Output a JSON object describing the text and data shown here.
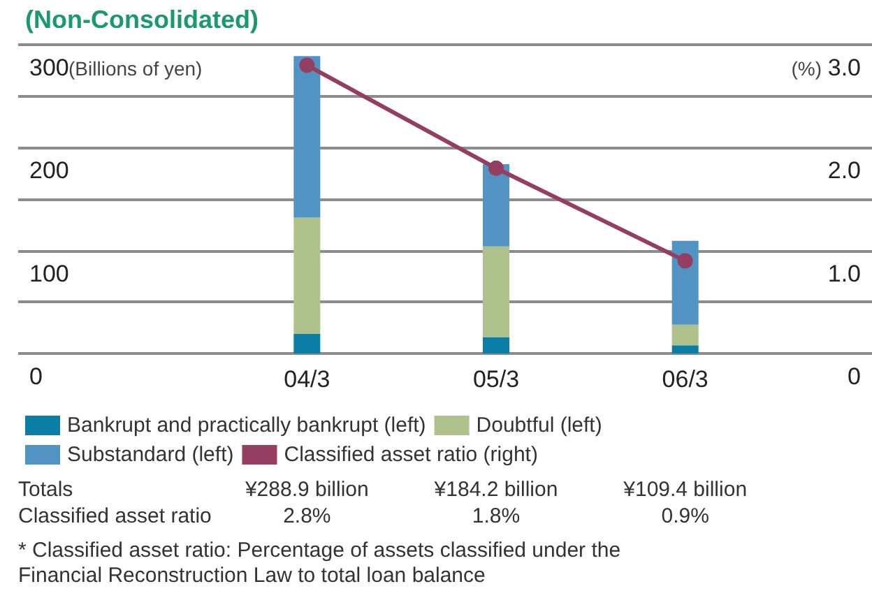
{
  "chart_data": {
    "type": "bar",
    "title": "(Non-Consolidated)",
    "categories": [
      "04/3",
      "05/3",
      "06/3"
    ],
    "stacked": true,
    "ylabel": "(Billions of yen)",
    "y2label": "(%)",
    "ylim": [
      0,
      300
    ],
    "yticks": [
      0,
      100,
      200,
      300
    ],
    "y2lim": [
      0,
      3
    ],
    "y2ticks": [
      {
        "value": 0,
        "label": "0"
      },
      {
        "value": 1,
        "label": "1.0"
      },
      {
        "value": 2,
        "label": "2.0"
      },
      {
        "value": 3,
        "label": "3.0"
      }
    ],
    "grid": "y",
    "legend": "bottom",
    "series": [
      {
        "name": "Bankrupt and practically bankrupt (left)",
        "color": "#0a7ea4",
        "values": [
          19,
          16,
          8
        ]
      },
      {
        "name": "Doubtful (left)",
        "color": "#b0c28c",
        "values": [
          113,
          88,
          20
        ]
      },
      {
        "name": "Substandard (left)",
        "color": "#5194c4",
        "values": [
          157,
          80,
          81.4
        ]
      },
      {
        "name": "Classified asset ratio (right)",
        "type": "line",
        "axis": "y2",
        "color": "#943f62",
        "marker": "circle",
        "values": [
          2.8,
          1.8,
          0.9
        ],
        "value_labels": [
          "2.8%",
          "1.8%",
          "0.9%"
        ]
      }
    ],
    "annotations": [
      "Totals",
      "Classified asset ratio",
      "¥288.9 billion",
      "¥184.2 billion",
      "¥109.4 billion",
      "* Classified asset ratio: Percentage of assets classified under the Financial Reconstruction Law to total loan balance"
    ]
  }
}
